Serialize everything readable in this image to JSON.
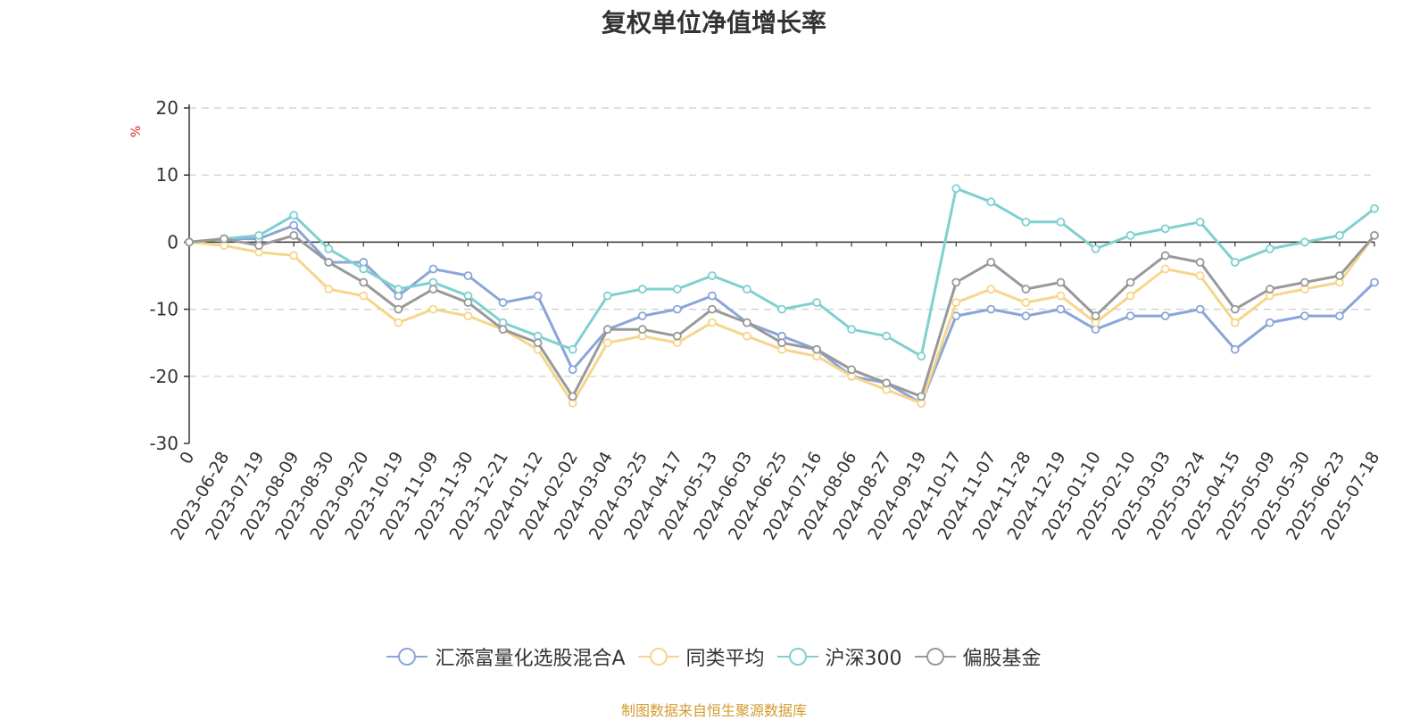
{
  "title": "复权单位净值增长率",
  "source": "制图数据来自恒生聚源数据库",
  "chart_data": {
    "type": "line",
    "ylabel": "%",
    "ylim": [
      -30,
      20
    ],
    "yticks": [
      20,
      10,
      0,
      -10,
      -20,
      -30
    ],
    "grid": true,
    "legend_position": "bottom",
    "x": [
      "0",
      "2023-06-28",
      "2023-07-19",
      "2023-08-09",
      "2023-08-30",
      "2023-09-20",
      "2023-10-19",
      "2023-11-09",
      "2023-11-30",
      "2023-12-21",
      "2024-01-12",
      "2024-02-02",
      "2024-03-04",
      "2024-03-25",
      "2024-04-17",
      "2024-05-13",
      "2024-06-03",
      "2024-06-25",
      "2024-07-16",
      "2024-08-06",
      "2024-08-27",
      "2024-09-19",
      "2024-10-17",
      "2024-11-07",
      "2024-11-28",
      "2024-12-19",
      "2025-01-10",
      "2025-02-10",
      "2025-03-03",
      "2025-03-24",
      "2025-04-15",
      "2025-05-09",
      "2025-05-30",
      "2025-06-23",
      "2025-07-18"
    ],
    "series": [
      {
        "name": "汇添富量化选股混合A",
        "color": "#8aa5d8",
        "values": [
          0,
          0.5,
          0.5,
          2.5,
          -3,
          -3,
          -8,
          -4,
          -5,
          -9,
          -8,
          -19,
          -13,
          -11,
          -10,
          -8,
          -12,
          -14,
          -16,
          -20,
          -21,
          -24,
          -11,
          -10,
          -11,
          -10,
          -13,
          -11,
          -11,
          -10,
          -16,
          -12,
          -11,
          -11,
          -6
        ]
      },
      {
        "name": "同类平均",
        "color": "#f7d58a",
        "values": [
          0,
          -0.5,
          -1.5,
          -2,
          -7,
          -8,
          -12,
          -10,
          -11,
          -13,
          -16,
          -24,
          -15,
          -14,
          -15,
          -12,
          -14,
          -16,
          -17,
          -20,
          -22,
          -24,
          -9,
          -7,
          -9,
          -8,
          -12,
          -8,
          -4,
          -5,
          -12,
          -8,
          -7,
          -6,
          1
        ]
      },
      {
        "name": "沪深300",
        "color": "#7fd0d0",
        "values": [
          0,
          0.5,
          1,
          4,
          -1,
          -4,
          -7,
          -6,
          -8,
          -12,
          -14,
          -16,
          -8,
          -7,
          -7,
          -5,
          -7,
          -10,
          -9,
          -13,
          -14,
          -17,
          8,
          6,
          3,
          3,
          -1,
          1,
          2,
          3,
          -3,
          -1,
          0,
          1,
          5
        ]
      },
      {
        "name": "偏股基金",
        "color": "#999999",
        "values": [
          0,
          0.5,
          -0.5,
          1,
          -3,
          -6,
          -10,
          -7,
          -9,
          -13,
          -15,
          -23,
          -13,
          -13,
          -14,
          -10,
          -12,
          -15,
          -16,
          -19,
          -21,
          -23,
          -6,
          -3,
          -7,
          -6,
          -11,
          -6,
          -2,
          -3,
          -10,
          -7,
          -6,
          -5,
          1
        ]
      }
    ]
  },
  "legend": {
    "items": [
      {
        "label": "汇添富量化选股混合A",
        "color": "#8aa5d8"
      },
      {
        "label": "同类平均",
        "color": "#f7d58a"
      },
      {
        "label": "沪深300",
        "color": "#7fd0d0"
      },
      {
        "label": "偏股基金",
        "color": "#999999"
      }
    ]
  }
}
